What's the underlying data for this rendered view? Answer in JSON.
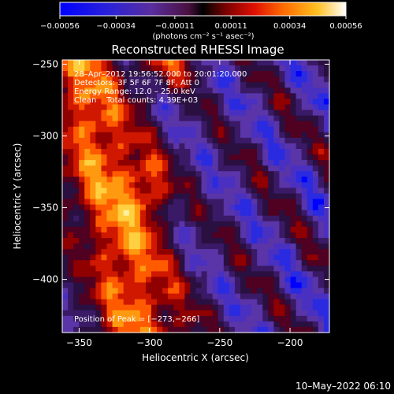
{
  "chart_data": {
    "type": "heatmap",
    "title": "Reconstructed RHESSI Image",
    "xlabel": "Heliocentric X (arcsec)",
    "ylabel": "Heliocentric Y (arcsec)",
    "xlim": [
      -362,
      -172
    ],
    "ylim": [
      -437,
      -247
    ],
    "x_ticks": [
      -350,
      -300,
      -250,
      -200
    ],
    "y_ticks": [
      -250,
      -300,
      -350,
      -400
    ],
    "x_tick_labels": [
      "−350",
      "−300",
      "−250",
      "−200"
    ],
    "y_tick_labels": [
      "−250",
      "−300",
      "−350",
      "−400"
    ],
    "colorbar": {
      "range": [
        -0.00056,
        0.00056
      ],
      "ticks": [
        -0.00056,
        -0.00034,
        -0.00011,
        0.00011,
        0.00034,
        0.00056
      ],
      "tick_labels": [
        "−0.00056",
        "−0.00034",
        "−0.00011",
        "0.00011",
        "0.00034",
        "0.00056"
      ],
      "units": "(photons cm⁻² s⁻¹ asec⁻²)"
    },
    "annotations": {
      "time_range": "28–Apr–2012 19:56:52.000 to 20:01:20.000",
      "detectors": "Detectors: 3F 5F 6F 7F 8F, Att 0",
      "energy": "Energy Range: 12.0 – 25.0 keV",
      "method": "Clean    Total counts: 4.39E+03",
      "peak": "Position of Peak = [−273,−266]"
    },
    "peak_position": [
      -273,
      -266
    ],
    "grid": false
  },
  "footer_date": "10–May–2022 06:10"
}
